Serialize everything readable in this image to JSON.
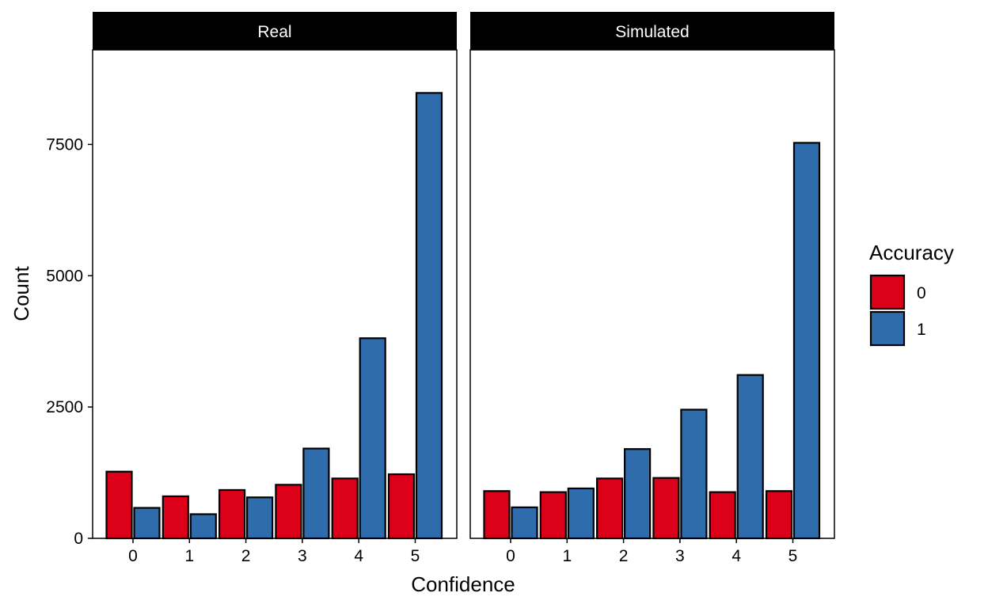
{
  "chart_data": {
    "type": "bar",
    "xlabel": "Confidence",
    "ylabel": "Count",
    "ylim": [
      0,
      9300
    ],
    "yticks": [
      0,
      2500,
      5000,
      7500
    ],
    "grid": false,
    "legend": {
      "title": "Accuracy",
      "placement": "right",
      "entries": [
        {
          "label": "0",
          "color": "#DC0019"
        },
        {
          "label": "1",
          "color": "#2E6CAC"
        }
      ]
    },
    "categories": [
      "0",
      "1",
      "2",
      "3",
      "4",
      "5"
    ],
    "panels": [
      {
        "title": "Real",
        "series": [
          {
            "name": "0",
            "values": [
              1270,
              800,
              920,
              1020,
              1140,
              1220
            ]
          },
          {
            "name": "1",
            "values": [
              580,
              460,
              780,
              1710,
              3810,
              8480
            ]
          }
        ]
      },
      {
        "title": "Simulated",
        "series": [
          {
            "name": "0",
            "values": [
              900,
              880,
              1140,
              1150,
              880,
              900
            ]
          },
          {
            "name": "1",
            "values": [
              590,
              950,
              1700,
              2450,
              3110,
              7530
            ]
          }
        ]
      }
    ]
  }
}
